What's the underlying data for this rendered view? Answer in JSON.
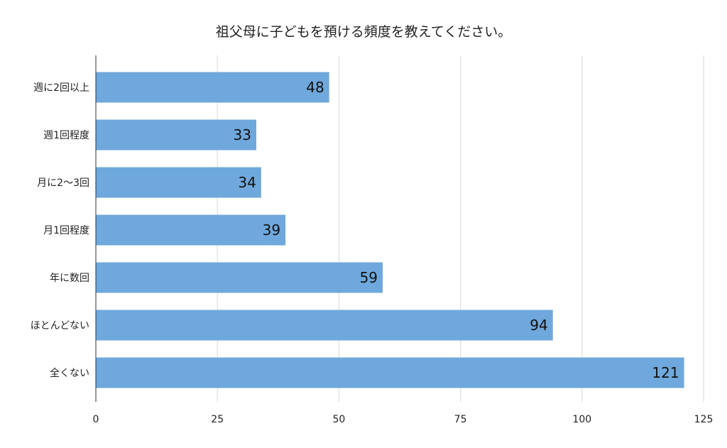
{
  "chart_data": {
    "type": "bar",
    "orientation": "horizontal",
    "title": "祖父母に子どもを預ける頻度を教えてください。",
    "xlabel": "",
    "ylabel": "",
    "categories": [
      "週に2回以上",
      "週1回程度",
      "月に2〜3回",
      "月1回程度",
      "年に数回",
      "ほとんどない",
      "全くない"
    ],
    "values": [
      48,
      33,
      34,
      39,
      59,
      94,
      121
    ],
    "xlim": [
      0,
      125
    ],
    "xticks": [
      0,
      25,
      50,
      75,
      100,
      125
    ],
    "grid": true,
    "bar_color": "#6fa8dc",
    "data_labels": true
  }
}
